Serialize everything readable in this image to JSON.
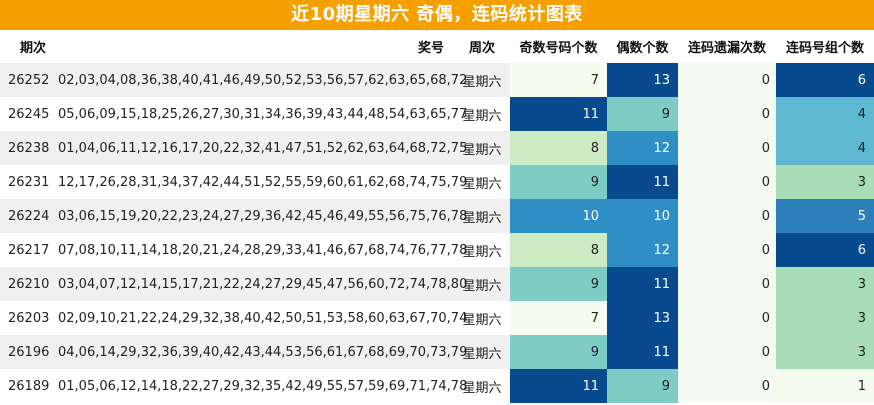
{
  "title": "近10期星期六 奇偶，连码统计图表",
  "headers": {
    "id": "期次",
    "numbers": "奖号",
    "weekday": "周次",
    "odd_count": "奇数号码个数",
    "even_count": "偶数个数",
    "miss_count": "连码遗漏次数",
    "group_count": "连码号组个数"
  },
  "heat_colors": {
    "1": "#f7fcf0",
    "3": "#a8ddb5",
    "4": "#5fb8d2",
    "5": "#2c7fb8",
    "6": "#084a8e",
    "7": "#f7fcf0",
    "8": "#ccebc5",
    "9": "#7ecdc4",
    "10": "#2e8fc4",
    "11": "#084a8e",
    "12": "#2e8fc4",
    "13": "#084a8e"
  },
  "rows": [
    {
      "id": "26252",
      "numbers": "02,03,04,08,36,38,40,41,46,49,50,52,53,56,57,62,63,65,68,72",
      "weekday": "星期六",
      "odd": 7,
      "even": 13,
      "miss": 0,
      "group": 6
    },
    {
      "id": "26245",
      "numbers": "05,06,09,15,18,25,26,27,30,31,34,36,39,43,44,48,54,63,65,77",
      "weekday": "星期六",
      "odd": 11,
      "even": 9,
      "miss": 0,
      "group": 4
    },
    {
      "id": "26238",
      "numbers": "01,04,06,11,12,16,17,20,22,32,41,47,51,52,62,63,64,68,72,75",
      "weekday": "星期六",
      "odd": 8,
      "even": 12,
      "miss": 0,
      "group": 4
    },
    {
      "id": "26231",
      "numbers": "12,17,26,28,31,34,37,42,44,51,52,55,59,60,61,62,68,74,75,79",
      "weekday": "星期六",
      "odd": 9,
      "even": 11,
      "miss": 0,
      "group": 3
    },
    {
      "id": "26224",
      "numbers": "03,06,15,19,20,22,23,24,27,29,36,42,45,46,49,55,56,75,76,78",
      "weekday": "星期六",
      "odd": 10,
      "even": 10,
      "miss": 0,
      "group": 5
    },
    {
      "id": "26217",
      "numbers": "07,08,10,11,14,18,20,21,24,28,29,33,41,46,67,68,74,76,77,78",
      "weekday": "星期六",
      "odd": 8,
      "even": 12,
      "miss": 0,
      "group": 6
    },
    {
      "id": "26210",
      "numbers": "03,04,07,12,14,15,17,21,22,24,27,29,45,47,56,60,72,74,78,80",
      "weekday": "星期六",
      "odd": 9,
      "even": 11,
      "miss": 0,
      "group": 3
    },
    {
      "id": "26203",
      "numbers": "02,09,10,21,22,24,29,32,38,40,42,50,51,53,58,60,63,67,70,74",
      "weekday": "星期六",
      "odd": 7,
      "even": 13,
      "miss": 0,
      "group": 3
    },
    {
      "id": "26196",
      "numbers": "04,06,14,29,32,36,39,40,42,43,44,53,56,61,67,68,69,70,73,79",
      "weekday": "星期六",
      "odd": 9,
      "even": 11,
      "miss": 0,
      "group": 3
    },
    {
      "id": "26189",
      "numbers": "01,05,06,12,14,18,22,27,29,32,35,42,49,55,57,59,69,71,74,78",
      "weekday": "星期六",
      "odd": 11,
      "even": 9,
      "miss": 0,
      "group": 1
    }
  ]
}
